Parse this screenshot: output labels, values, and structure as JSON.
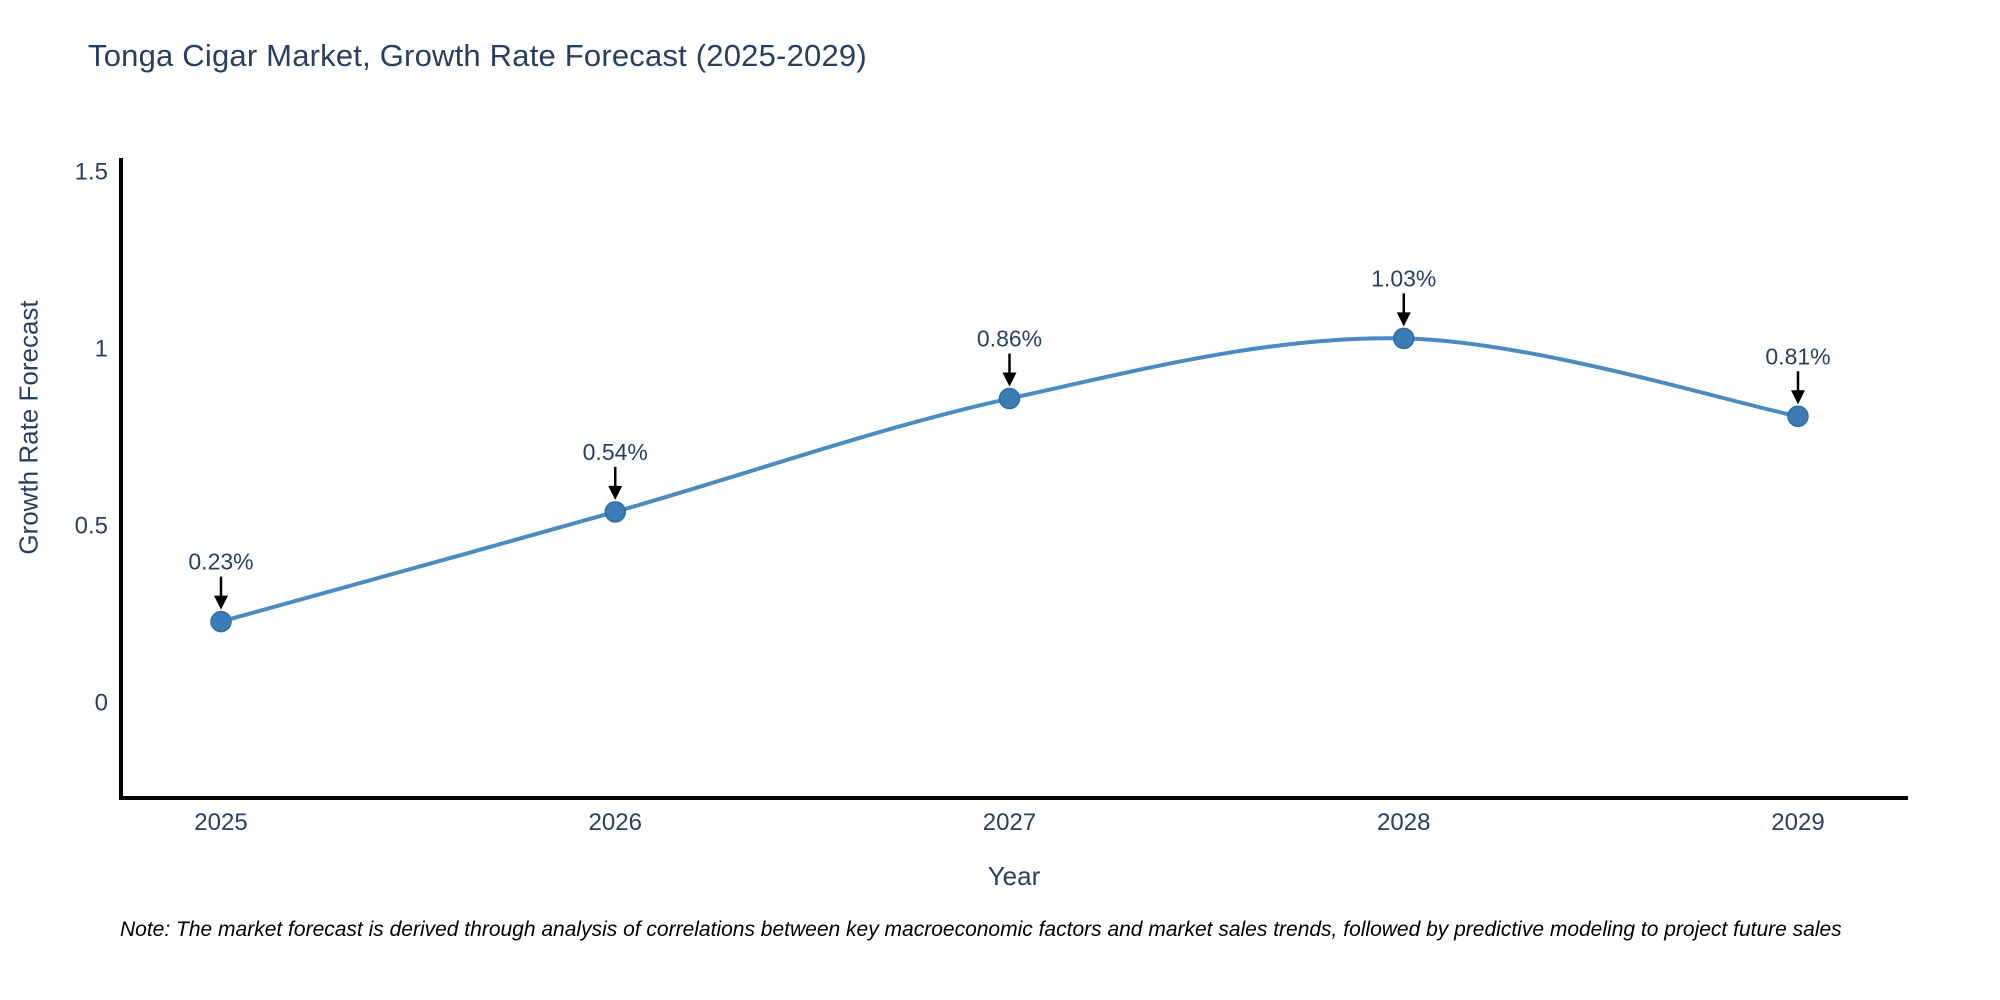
{
  "title": "Tonga Cigar Market, Growth Rate Forecast (2025-2029)",
  "note": "Note: The market forecast is derived through analysis of correlations between key macroeconomic factors and market sales trends, followed by predictive modeling to project future sales",
  "chart_data": {
    "type": "line",
    "title": "Tonga Cigar Market, Growth Rate Forecast (2025-2029)",
    "xlabel": "Year",
    "ylabel": "Growth Rate Forecast",
    "x": [
      2025,
      2026,
      2027,
      2028,
      2029
    ],
    "values": [
      0.23,
      0.54,
      0.86,
      1.03,
      0.81
    ],
    "point_labels": [
      "0.23%",
      "0.54%",
      "0.86%",
      "1.03%",
      "0.81%"
    ],
    "xtick_labels": [
      "2025",
      "2026",
      "2027",
      "2028",
      "2029"
    ],
    "yticks": [
      0,
      0.5,
      1,
      1.5
    ],
    "ytick_labels": [
      "0",
      "0.5",
      "1",
      "1.5"
    ],
    "ylim": [
      -0.27,
      1.53
    ],
    "grid": false,
    "legend": "none",
    "line_shape": "spline",
    "marker": "circle",
    "annotation_style": "value label with downward black arrow above each point",
    "colors": {
      "line": "#4a8bc2",
      "marker_fill": "#3c7cb5",
      "marker_edge": "#2e6da4",
      "axis": "#000000",
      "text": "#2a3f5f",
      "annotation": "#000000",
      "background": "#ffffff"
    }
  }
}
